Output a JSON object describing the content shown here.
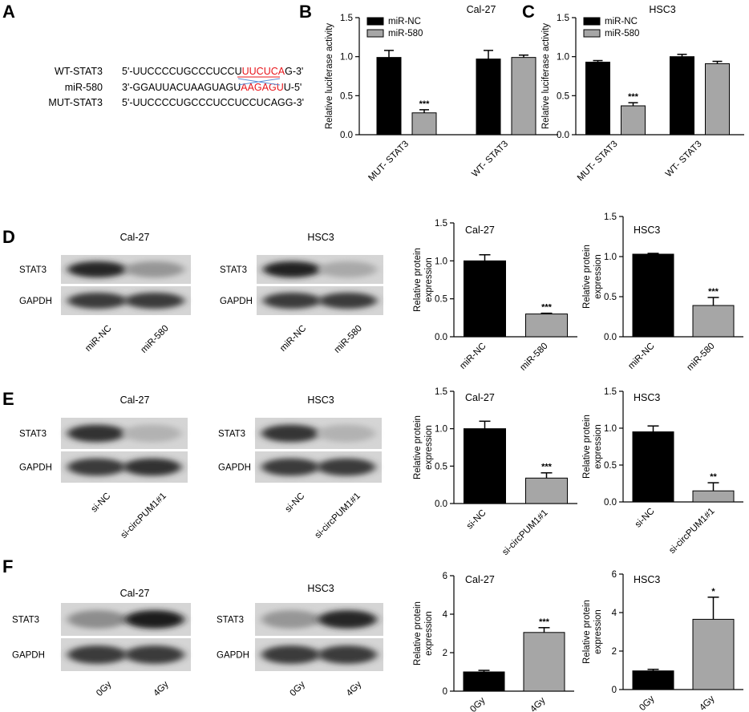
{
  "panel_letters": [
    "A",
    "B",
    "C",
    "D",
    "E",
    "F"
  ],
  "sequence": {
    "rows": [
      {
        "label": "WT-STAT3",
        "prefix": "5'-UUCCCCUGCCCUCCU",
        "highlight": "UUCUCA",
        "suffix": "G-3'"
      },
      {
        "label": "miR-580",
        "prefix": "3'-GGAUUACUAAGUAGU",
        "highlight": "AAGAGU",
        "suffix": "U-5'"
      },
      {
        "label": "MUT-STAT3",
        "prefix": "5'-UUCCCCUGCCCUCCUCCUCAGG-3'",
        "highlight": "",
        "suffix": ""
      }
    ],
    "highlight_color": "#e8141a",
    "pairing_line_color": "#5b8fd6"
  },
  "colors": {
    "black_bar": "#000000",
    "grey_bar": "#a6a6a6"
  },
  "chart_data": [
    {
      "id": "B",
      "type": "bar",
      "title": "Cal-27",
      "ylabel": "Relative luciferase activity",
      "ylim": [
        0,
        1.5
      ],
      "yticks": [
        "0.0",
        "0.5",
        "1.0",
        "1.5"
      ],
      "categories": [
        "MUT- STAT3",
        "WT- STAT3"
      ],
      "series": [
        {
          "name": "miR-NC",
          "color": "#000000",
          "values": [
            0.99,
            0.97
          ],
          "errors": [
            0.09,
            0.11
          ]
        },
        {
          "name": "miR-580",
          "color": "#a6a6a6",
          "values": [
            0.28,
            0.99
          ],
          "errors": [
            0.04,
            0.03
          ]
        }
      ],
      "annotations": [
        {
          "category": 0,
          "series": 1,
          "text": "***"
        }
      ],
      "legend": "top-left"
    },
    {
      "id": "C",
      "type": "bar",
      "title": "HSC3",
      "ylabel": "Relative luciferase activity",
      "ylim": [
        0,
        1.5
      ],
      "yticks": [
        "0.0",
        "0.5",
        "1.0",
        "1.5"
      ],
      "categories": [
        "MUT- STAT3",
        "WT- STAT3"
      ],
      "series": [
        {
          "name": "miR-NC",
          "color": "#000000",
          "values": [
            0.93,
            1.0
          ],
          "errors": [
            0.02,
            0.03
          ]
        },
        {
          "name": "miR-580",
          "color": "#a6a6a6",
          "values": [
            0.37,
            0.91
          ],
          "errors": [
            0.04,
            0.03
          ]
        }
      ],
      "annotations": [
        {
          "category": 0,
          "series": 1,
          "text": "***"
        }
      ],
      "legend": "top-left"
    },
    {
      "id": "D1",
      "type": "bar",
      "title": "Cal-27",
      "ylabel": "Relative protein expression",
      "ylim": [
        0,
        1.5
      ],
      "yticks": [
        "0.0",
        "0.5",
        "1.0",
        "1.5"
      ],
      "categories": [
        "miR-NC",
        "miR-580"
      ],
      "values": [
        1.0,
        0.3
      ],
      "errors": [
        0.08,
        0.01
      ],
      "colors": [
        "#000000",
        "#a6a6a6"
      ],
      "annotations": [
        {
          "index": 1,
          "text": "***"
        }
      ]
    },
    {
      "id": "D2",
      "type": "bar",
      "title": "HSC3",
      "ylabel": "Relative protein expression",
      "ylim": [
        0,
        1.5
      ],
      "yticks": [
        "0.0",
        "0.5",
        "1.0",
        "1.5"
      ],
      "categories": [
        "miR-NC",
        "miR-580"
      ],
      "values": [
        1.03,
        0.39
      ],
      "errors": [
        0.01,
        0.1
      ],
      "colors": [
        "#000000",
        "#a6a6a6"
      ],
      "annotations": [
        {
          "index": 1,
          "text": "***"
        }
      ]
    },
    {
      "id": "E1",
      "type": "bar",
      "title": "Cal-27",
      "ylabel": "Relative protein expression",
      "ylim": [
        0,
        1.5
      ],
      "yticks": [
        "0.0",
        "0.5",
        "1.0",
        "1.5"
      ],
      "categories": [
        "si-NC",
        "si-circPUM1#1"
      ],
      "values": [
        1.0,
        0.34
      ],
      "errors": [
        0.1,
        0.07
      ],
      "colors": [
        "#000000",
        "#a6a6a6"
      ],
      "annotations": [
        {
          "index": 1,
          "text": "***"
        }
      ]
    },
    {
      "id": "E2",
      "type": "bar",
      "title": "HSC3",
      "ylabel": "Relative protein expression",
      "ylim": [
        0,
        1.5
      ],
      "yticks": [
        "0.0",
        "0.5",
        "1.0",
        "1.5"
      ],
      "categories": [
        "si-NC",
        "si-circPUM1#1"
      ],
      "values": [
        0.95,
        0.15
      ],
      "errors": [
        0.08,
        0.11
      ],
      "colors": [
        "#000000",
        "#a6a6a6"
      ],
      "annotations": [
        {
          "index": 1,
          "text": "**"
        }
      ]
    },
    {
      "id": "F1",
      "type": "bar",
      "title": "Cal-27",
      "ylabel": "Relative protein expression",
      "ylim": [
        0,
        6
      ],
      "yticks": [
        "0",
        "2",
        "4",
        "6"
      ],
      "categories": [
        "0Gy",
        "4Gy"
      ],
      "values": [
        1.0,
        3.05
      ],
      "errors": [
        0.08,
        0.25
      ],
      "colors": [
        "#000000",
        "#a6a6a6"
      ],
      "annotations": [
        {
          "index": 1,
          "text": "***"
        }
      ]
    },
    {
      "id": "F2",
      "type": "bar",
      "title": "HSC3",
      "ylabel": "Relative protein expression",
      "ylim": [
        0,
        6
      ],
      "yticks": [
        "0",
        "2",
        "4",
        "6"
      ],
      "categories": [
        "0Gy",
        "4Gy"
      ],
      "values": [
        0.97,
        3.65
      ],
      "errors": [
        0.08,
        1.15
      ],
      "colors": [
        "#000000",
        "#a6a6a6"
      ],
      "annotations": [
        {
          "index": 1,
          "text": "*"
        }
      ]
    }
  ],
  "blots": [
    {
      "id": "D1",
      "title": "Cal-27",
      "bands": [
        "STAT3",
        "GAPDH"
      ],
      "lanes": [
        "miR-NC",
        "miR-580"
      ],
      "intensity": [
        [
          0.95,
          0.35
        ],
        [
          0.85,
          0.85
        ]
      ]
    },
    {
      "id": "D2",
      "title": "HSC3",
      "bands": [
        "STAT3",
        "GAPDH"
      ],
      "lanes": [
        "miR-NC",
        "miR-580"
      ],
      "intensity": [
        [
          0.97,
          0.25
        ],
        [
          0.85,
          0.85
        ]
      ]
    },
    {
      "id": "E1",
      "title": "Cal-27",
      "bands": [
        "STAT3",
        "GAPDH"
      ],
      "lanes": [
        "si-NC",
        "si-circPUM1#1"
      ],
      "intensity": [
        [
          0.9,
          0.2
        ],
        [
          0.85,
          0.9
        ]
      ]
    },
    {
      "id": "E2",
      "title": "HSC3",
      "bands": [
        "STAT3",
        "GAPDH"
      ],
      "lanes": [
        "si-NC",
        "si-circPUM1#1"
      ],
      "intensity": [
        [
          0.88,
          0.2
        ],
        [
          0.85,
          0.85
        ]
      ]
    },
    {
      "id": "F1",
      "title": "Cal-27",
      "bands": [
        "STAT3",
        "GAPDH"
      ],
      "lanes": [
        "0Gy",
        "4Gy"
      ],
      "intensity": [
        [
          0.4,
          1.0
        ],
        [
          0.85,
          0.85
        ]
      ]
    },
    {
      "id": "F2",
      "title": "HSC3",
      "bands": [
        "STAT3",
        "GAPDH"
      ],
      "lanes": [
        "0Gy",
        "4Gy"
      ],
      "intensity": [
        [
          0.35,
          0.95
        ],
        [
          0.85,
          0.85
        ]
      ]
    }
  ]
}
